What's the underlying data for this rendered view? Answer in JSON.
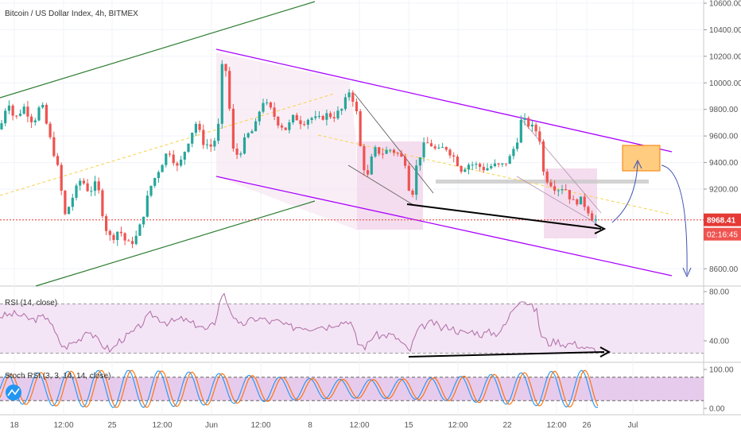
{
  "header": {
    "title": "Bitcoin / US Dollar Index, 4h, BITMEX"
  },
  "chart_data": [
    {
      "type": "candlestick",
      "title": "Bitcoin / US Dollar Index, 4h, BITMEX",
      "ylim": [
        8450,
        10650
      ],
      "y_ticks": [
        {
          "label": "10600.00",
          "value": 10600
        },
        {
          "label": "10400.00",
          "value": 10400
        },
        {
          "label": "10200.00",
          "value": 10200
        },
        {
          "label": "10000.00",
          "value": 10000
        },
        {
          "label": "9800.00",
          "value": 9800
        },
        {
          "label": "9600.00",
          "value": 9600
        },
        {
          "label": "9400.00",
          "value": 9400
        },
        {
          "label": "9200.00",
          "value": 9200
        },
        {
          "label": "8600.00",
          "value": 8600
        }
      ],
      "x_ticks": [
        "18",
        "12:00",
        "25",
        "12:00",
        "Jun",
        "12:00",
        "8",
        "12:00",
        "15",
        "12:00",
        "22",
        "12:00",
        "26",
        "Jul"
      ],
      "last_price": {
        "label": "8968.41",
        "value": 8968.41
      },
      "countdown": {
        "label": "02:16:45"
      },
      "path": [
        [
          0,
          9650
        ],
        [
          10,
          9880
        ],
        [
          18,
          9720
        ],
        [
          30,
          9820
        ],
        [
          42,
          9700
        ],
        [
          52,
          9850
        ],
        [
          62,
          9600
        ],
        [
          72,
          9380
        ],
        [
          82,
          9000
        ],
        [
          92,
          9150
        ],
        [
          102,
          9280
        ],
        [
          112,
          9180
        ],
        [
          122,
          9250
        ],
        [
          132,
          8920
        ],
        [
          140,
          8820
        ],
        [
          150,
          8900
        ],
        [
          160,
          8780
        ],
        [
          170,
          8820
        ],
        [
          178,
          8950
        ],
        [
          188,
          9200
        ],
        [
          200,
          9350
        ],
        [
          212,
          9500
        ],
        [
          224,
          9350
        ],
        [
          236,
          9550
        ],
        [
          246,
          9700
        ],
        [
          256,
          9550
        ],
        [
          266,
          9520
        ],
        [
          274,
          9620
        ],
        [
          280,
          10180
        ],
        [
          286,
          10050
        ],
        [
          292,
          9500
        ],
        [
          300,
          9450
        ],
        [
          310,
          9600
        ],
        [
          320,
          9650
        ],
        [
          330,
          9870
        ],
        [
          340,
          9800
        ],
        [
          350,
          9700
        ],
        [
          360,
          9650
        ],
        [
          370,
          9750
        ],
        [
          380,
          9700
        ],
        [
          390,
          9740
        ],
        [
          400,
          9720
        ],
        [
          410,
          9760
        ],
        [
          420,
          9750
        ],
        [
          430,
          9800
        ],
        [
          440,
          9950
        ],
        [
          448,
          9800
        ],
        [
          455,
          9420
        ],
        [
          462,
          9280
        ],
        [
          470,
          9500
        ],
        [
          480,
          9470
        ],
        [
          490,
          9500
        ],
        [
          500,
          9470
        ],
        [
          510,
          9400
        ],
        [
          517,
          9100
        ],
        [
          524,
          9380
        ],
        [
          532,
          9520
        ],
        [
          540,
          9550
        ],
        [
          550,
          9480
        ],
        [
          560,
          9520
        ],
        [
          570,
          9450
        ],
        [
          580,
          9350
        ],
        [
          590,
          9390
        ],
        [
          600,
          9380
        ],
        [
          610,
          9350
        ],
        [
          620,
          9380
        ],
        [
          630,
          9370
        ],
        [
          640,
          9420
        ],
        [
          650,
          9560
        ],
        [
          656,
          9730
        ],
        [
          664,
          9690
        ],
        [
          672,
          9650
        ],
        [
          678,
          9620
        ],
        [
          684,
          9300
        ],
        [
          692,
          9250
        ],
        [
          700,
          9200
        ],
        [
          710,
          9220
        ],
        [
          720,
          9100
        ],
        [
          730,
          9120
        ],
        [
          738,
          9060
        ],
        [
          746,
          8970
        ],
        [
          752,
          8968
        ]
      ]
    },
    {
      "type": "line",
      "title": "RSI (14, close)",
      "ylim": [
        25,
        85
      ],
      "y_ticks": [
        {
          "label": "80.00",
          "value": 80
        },
        {
          "label": "40.00",
          "value": 40
        }
      ],
      "levels": [
        70,
        30
      ],
      "path": [
        [
          0,
          60
        ],
        [
          20,
          62
        ],
        [
          40,
          57
        ],
        [
          60,
          60
        ],
        [
          70,
          45
        ],
        [
          80,
          34
        ],
        [
          90,
          38
        ],
        [
          100,
          41
        ],
        [
          110,
          50
        ],
        [
          120,
          42
        ],
        [
          130,
          36
        ],
        [
          140,
          32
        ],
        [
          150,
          40
        ],
        [
          160,
          44
        ],
        [
          170,
          48
        ],
        [
          180,
          55
        ],
        [
          190,
          62
        ],
        [
          200,
          58
        ],
        [
          210,
          55
        ],
        [
          220,
          56
        ],
        [
          230,
          58
        ],
        [
          240,
          54
        ],
        [
          250,
          53
        ],
        [
          260,
          48
        ],
        [
          270,
          55
        ],
        [
          280,
          80
        ],
        [
          290,
          65
        ],
        [
          300,
          52
        ],
        [
          310,
          55
        ],
        [
          320,
          58
        ],
        [
          330,
          58
        ],
        [
          340,
          55
        ],
        [
          350,
          56
        ],
        [
          360,
          52
        ],
        [
          370,
          51
        ],
        [
          380,
          52
        ],
        [
          390,
          50
        ],
        [
          400,
          53
        ],
        [
          410,
          51
        ],
        [
          420,
          54
        ],
        [
          430,
          55
        ],
        [
          440,
          57
        ],
        [
          450,
          38
        ],
        [
          460,
          35
        ],
        [
          470,
          45
        ],
        [
          480,
          44
        ],
        [
          490,
          45
        ],
        [
          500,
          42
        ],
        [
          515,
          31
        ],
        [
          525,
          48
        ],
        [
          535,
          53
        ],
        [
          545,
          55
        ],
        [
          555,
          50
        ],
        [
          565,
          52
        ],
        [
          575,
          48
        ],
        [
          585,
          46
        ],
        [
          595,
          48
        ],
        [
          605,
          45
        ],
        [
          615,
          47
        ],
        [
          625,
          46
        ],
        [
          635,
          52
        ],
        [
          645,
          66
        ],
        [
          655,
          75
        ],
        [
          665,
          70
        ],
        [
          675,
          64
        ],
        [
          680,
          45
        ],
        [
          690,
          38
        ],
        [
          700,
          40
        ],
        [
          710,
          37
        ],
        [
          720,
          38
        ],
        [
          730,
          36
        ],
        [
          740,
          33
        ],
        [
          750,
          33
        ]
      ]
    },
    {
      "type": "line",
      "title": "Stoch RSI (3, 3, 14, 14, close)",
      "ylim": [
        -10,
        110
      ],
      "y_ticks": [
        {
          "label": "100.00",
          "value": 100
        },
        {
          "label": "0.00",
          "value": 0
        }
      ],
      "levels": [
        80,
        20
      ],
      "series": [
        {
          "color": "#2196f3",
          "period": 38,
          "phase": 0
        },
        {
          "color": "#ff6d00",
          "period": 38,
          "phase": 4
        }
      ],
      "samples_x": [
        0,
        752
      ]
    }
  ],
  "drawings": {
    "channel_color_green": "#2e7d32",
    "channel_color_purple": "#aa00ff",
    "divergence_color": "#000000",
    "target_box_color": "#ffcc80",
    "arrow_color": "#3f51b5",
    "up_candle": "#26a69a",
    "down_candle": "#ef5350",
    "rsi_line": "#b06aa6",
    "rsi_fill": "#f3e5f5",
    "stoch_fill": "#e1bee7",
    "box_fill": "#f3d9ec",
    "trendline_yellow": "#f7d24b",
    "price_line": "#e53935"
  }
}
